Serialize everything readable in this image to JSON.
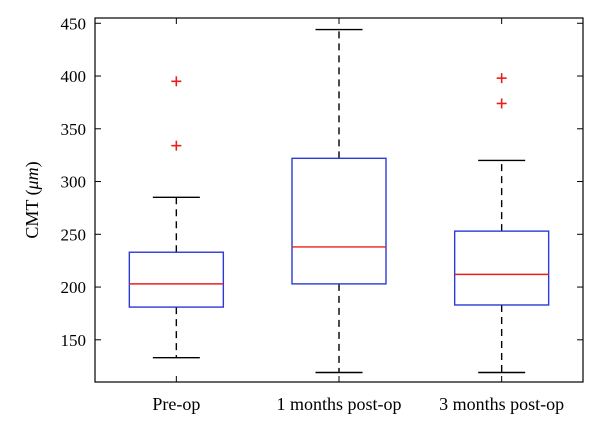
{
  "chart_data": {
    "type": "box",
    "ylabel_main": "CMT (",
    "ylabel_unit": "μm",
    "ylabel_close": ")",
    "xlabel": "",
    "ylim": [
      110,
      455
    ],
    "yticks": [
      150,
      200,
      250,
      300,
      350,
      400,
      450
    ],
    "grid": false,
    "box_color": "#2b3bd6",
    "median_color": "#e8201c",
    "outlier_color": "#e8201c",
    "whisker_color": "#000000",
    "categories": [
      "Pre-op",
      "1 months post-op",
      "3 months post-op"
    ],
    "boxes": [
      {
        "category": "Pre-op",
        "whisker_low": 133,
        "q1": 181,
        "median": 203,
        "q3": 233,
        "whisker_high": 285,
        "outliers": [
          334,
          395
        ]
      },
      {
        "category": "1 months post-op",
        "whisker_low": 119,
        "q1": 203,
        "median": 238,
        "q3": 322,
        "whisker_high": 444,
        "outliers": []
      },
      {
        "category": "3 months post-op",
        "whisker_low": 119,
        "q1": 183,
        "median": 212,
        "q3": 253,
        "whisker_high": 320,
        "outliers": [
          374,
          398
        ]
      }
    ]
  }
}
